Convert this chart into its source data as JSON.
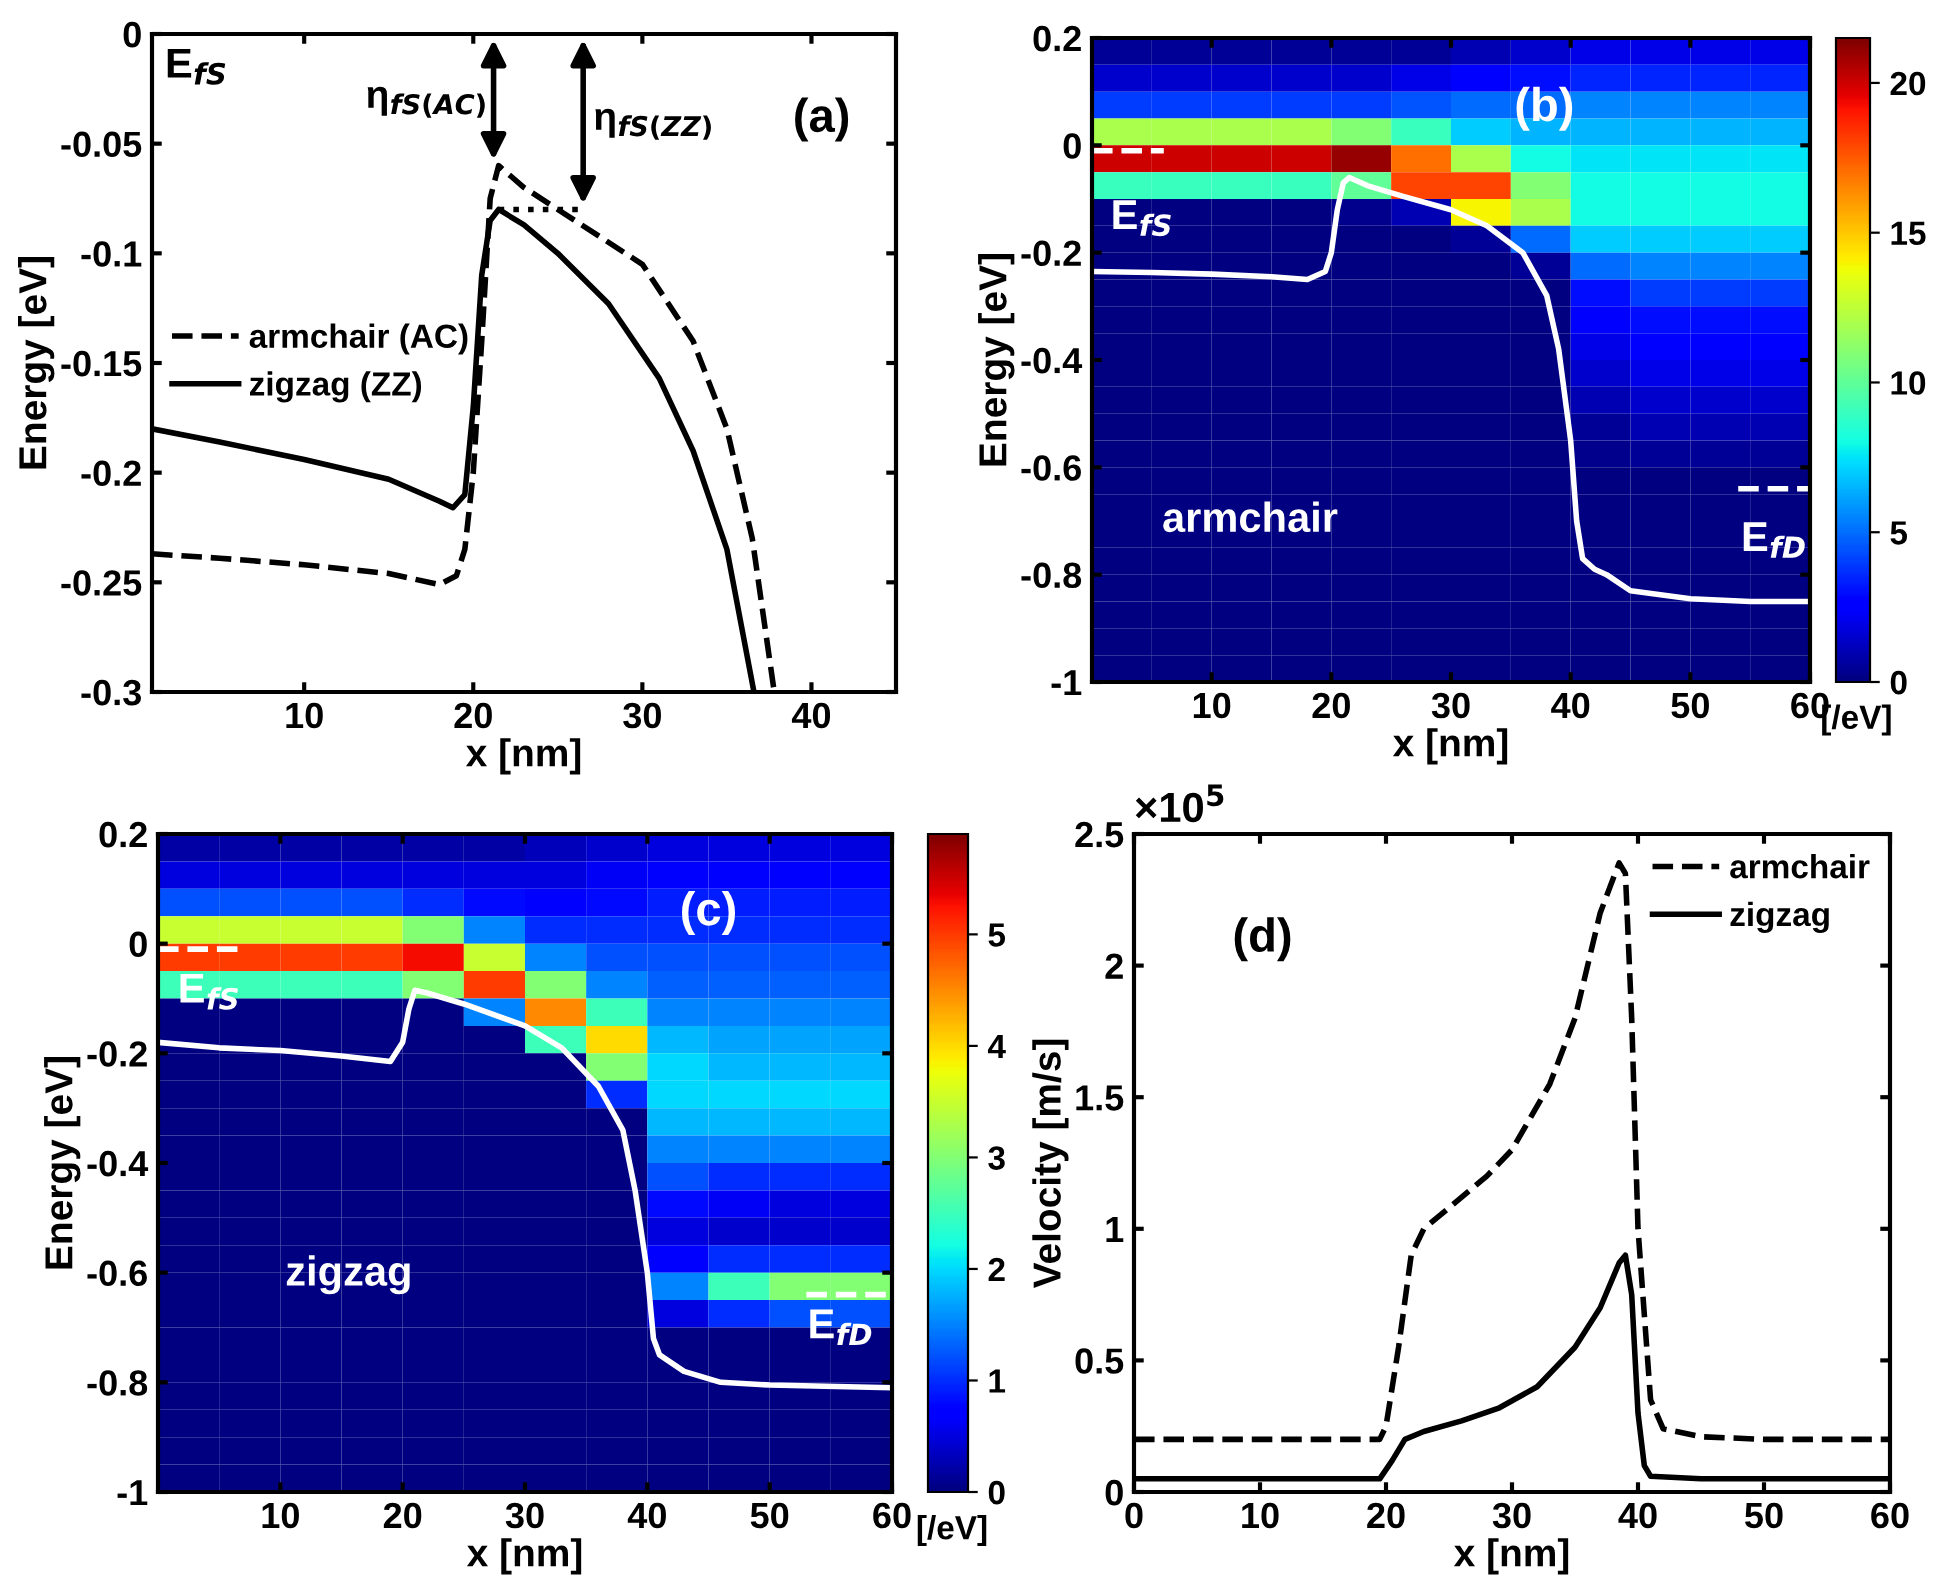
{
  "chart_data": [
    {
      "type": "line",
      "xlabel": "x [nm]",
      "ylabel": "Energy [eV]",
      "xlim": [
        1,
        45
      ],
      "xticks": [
        10,
        20,
        30,
        40
      ],
      "ylim": [
        -0.3,
        0
      ],
      "yticks": [
        -0.3,
        -0.25,
        -0.2,
        -0.15,
        -0.1,
        -0.05,
        0
      ],
      "legend": "center left",
      "series": [
        {
          "name": "armchair (AC)",
          "color": "#000000",
          "line_style": "dashed",
          "x": [
            1,
            5,
            10,
            15,
            18,
            19,
            19.5,
            20,
            20.5,
            21,
            21.5,
            23,
            26,
            30,
            33,
            35,
            36.5,
            37.8
          ],
          "values": [
            -0.237,
            -0.239,
            -0.242,
            -0.246,
            -0.251,
            -0.247,
            -0.235,
            -0.2,
            -0.14,
            -0.075,
            -0.06,
            -0.07,
            -0.085,
            -0.105,
            -0.14,
            -0.18,
            -0.23,
            -0.3
          ]
        },
        {
          "name": "zigzag (ZZ)",
          "color": "#000000",
          "line_style": "solid",
          "x": [
            1,
            5,
            10,
            15,
            18,
            18.8,
            19.5,
            20,
            20.5,
            21,
            21.5,
            23,
            25,
            28,
            31,
            33,
            35,
            36.6
          ],
          "values": [
            -0.18,
            -0.186,
            -0.194,
            -0.203,
            -0.213,
            -0.216,
            -0.21,
            -0.17,
            -0.11,
            -0.085,
            -0.08,
            -0.087,
            -0.1,
            -0.123,
            -0.157,
            -0.19,
            -0.235,
            -0.3
          ]
        },
        {
          "color": "#000000",
          "line_style": "dotted",
          "x": [
            21.5,
            26.5
          ],
          "values": [
            -0.08,
            -0.08
          ]
        }
      ],
      "annotations": [
        "E$_{fS}$",
        "(a)",
        {
          "text": "η$_{fS(AC)}$",
          "x": 21.2,
          "y": -0.06
        },
        {
          "text": "η$_{fS(ZZ)}$",
          "x": 26.5,
          "y": -0.08
        }
      ]
    },
    {
      "type": "heatmap",
      "xlabel": "x [nm]",
      "ylabel": "Energy [eV]",
      "clabel": "[/eV]",
      "xlim": [
        0,
        60
      ],
      "xticks": [
        10,
        20,
        30,
        40,
        50,
        60
      ],
      "ylim": [
        -1,
        0.2
      ],
      "yticks": [
        -1,
        -0.8,
        -0.6,
        -0.4,
        -0.2,
        0,
        0.2
      ],
      "clim": [
        0,
        21.5
      ],
      "cticks": [
        0,
        5,
        10,
        15,
        20
      ],
      "x": [
        2.5,
        7.5,
        12.5,
        17.5,
        22.5,
        27.5,
        32.5,
        37.5,
        42.5,
        47.5,
        52.5,
        57.5
      ],
      "y": [
        0.175,
        0.125,
        0.075,
        0.025,
        -0.025,
        -0.075,
        -0.125,
        -0.175,
        -0.225,
        -0.275,
        -0.325,
        -0.375,
        -0.425,
        -0.475,
        -0.525,
        -0.575,
        -0.625,
        -0.675,
        -0.725,
        -0.775,
        -0.825,
        -0.875,
        -0.925,
        -0.975
      ],
      "cells": [
        [
          0.5,
          0.5,
          0.5,
          0.5,
          0.5,
          0.5,
          1,
          1.5,
          2,
          2,
          2,
          2
        ],
        [
          1.5,
          1.5,
          1.5,
          1.5,
          1.5,
          2,
          2.5,
          3,
          3.5,
          3.5,
          3.5,
          3.5
        ],
        [
          4,
          4,
          4,
          4,
          4,
          4.5,
          5,
          5,
          5.5,
          5.5,
          5.5,
          5.5
        ],
        [
          12,
          12,
          12,
          12,
          11,
          9,
          7,
          6.5,
          6.5,
          6.5,
          6.5,
          6.5
        ],
        [
          20,
          20,
          20,
          20,
          21,
          17,
          12,
          8,
          7.5,
          7.5,
          7.5,
          7.5
        ],
        [
          9,
          9,
          9,
          9,
          10,
          18,
          18,
          11,
          8,
          8,
          8,
          8
        ],
        [
          0,
          0,
          0,
          0,
          0.3,
          1,
          14,
          12,
          8,
          8,
          8,
          8
        ],
        [
          0,
          0,
          0,
          0,
          0,
          0,
          0.5,
          5,
          7,
          7,
          7,
          7
        ],
        [
          0,
          0,
          0,
          0,
          0,
          0,
          0,
          0.5,
          5,
          5.5,
          5.5,
          5.5
        ],
        [
          0,
          0,
          0,
          0,
          0,
          0,
          0,
          0,
          3,
          4,
          4,
          4
        ],
        [
          0,
          0,
          0,
          0,
          0,
          0,
          0,
          0,
          2.5,
          3,
          3,
          3
        ],
        [
          0,
          0,
          0,
          0,
          0,
          0,
          0,
          0,
          2,
          2.5,
          2.5,
          2.5
        ],
        [
          0,
          0,
          0,
          0,
          0,
          0,
          0,
          0,
          1.5,
          2,
          2,
          2
        ],
        [
          0,
          0,
          0,
          0,
          0,
          0,
          0,
          0,
          1,
          1.5,
          1.5,
          1.5
        ],
        [
          0,
          0,
          0,
          0,
          0,
          0,
          0,
          0,
          0.5,
          1,
          1,
          1
        ],
        [
          0,
          0,
          0,
          0,
          0,
          0,
          0,
          0,
          0.3,
          0.5,
          0.5,
          0.5
        ],
        [
          0,
          0,
          0,
          0,
          0,
          0,
          0,
          0,
          0,
          0,
          0,
          0
        ],
        [
          0,
          0,
          0,
          0,
          0,
          0,
          0,
          0,
          0,
          0,
          0,
          0
        ],
        [
          0,
          0,
          0,
          0,
          0,
          0,
          0,
          0,
          0,
          0,
          0,
          0
        ],
        [
          0,
          0,
          0,
          0,
          0,
          0,
          0,
          0,
          0,
          0,
          0,
          0
        ],
        [
          0,
          0,
          0,
          0,
          0,
          0,
          0,
          0,
          0,
          0,
          0,
          0
        ],
        [
          0,
          0,
          0,
          0,
          0,
          0,
          0,
          0,
          0,
          0,
          0,
          0
        ],
        [
          0,
          0,
          0,
          0,
          0,
          0,
          0,
          0,
          0,
          0,
          0,
          0
        ],
        [
          0,
          0,
          0,
          0,
          0,
          0,
          0,
          0,
          0,
          0,
          0,
          0
        ]
      ],
      "series": [
        {
          "type": "line",
          "color": "#ffffff",
          "line_style": "solid",
          "x": [
            0,
            5,
            10,
            15,
            18,
            19.5,
            20,
            20.5,
            21,
            21.5,
            23,
            26,
            30,
            33,
            36,
            38,
            39,
            40,
            40.5,
            41,
            42,
            43,
            45,
            50,
            55,
            60
          ],
          "values": [
            -0.235,
            -0.237,
            -0.24,
            -0.245,
            -0.25,
            -0.235,
            -0.2,
            -0.12,
            -0.07,
            -0.06,
            -0.075,
            -0.095,
            -0.12,
            -0.15,
            -0.2,
            -0.28,
            -0.38,
            -0.55,
            -0.7,
            -0.77,
            -0.79,
            -0.8,
            -0.83,
            -0.845,
            -0.85,
            -0.85
          ]
        },
        {
          "type": "line",
          "color": "#ffffff",
          "line_style": "dashed",
          "x": [
            0,
            6
          ],
          "values": [
            -0.01,
            -0.01
          ]
        },
        {
          "type": "line",
          "color": "#ffffff",
          "line_style": "dashed",
          "x": [
            54,
            60
          ],
          "values": [
            -0.64,
            -0.64
          ]
        }
      ],
      "annotations": [
        "(b)",
        "E$_{fS}$",
        "armchair",
        "E$_{fD}$"
      ]
    },
    {
      "type": "heatmap",
      "xlabel": "x [nm]",
      "ylabel": "Energy [eV]",
      "clabel": "[/eV]",
      "xlim": [
        0,
        60
      ],
      "xticks": [
        10,
        20,
        30,
        40,
        50,
        60
      ],
      "ylim": [
        -1,
        0.2
      ],
      "yticks": [
        -1,
        -0.8,
        -0.6,
        -0.4,
        -0.2,
        0,
        0.2
      ],
      "clim": [
        0,
        5.9
      ],
      "cticks": [
        0,
        1,
        2,
        3,
        4,
        5
      ],
      "x": [
        2.5,
        7.5,
        12.5,
        17.5,
        22.5,
        27.5,
        32.5,
        37.5,
        42.5,
        47.5,
        52.5,
        57.5
      ],
      "y": [
        0.175,
        0.125,
        0.075,
        0.025,
        -0.025,
        -0.075,
        -0.125,
        -0.175,
        -0.225,
        -0.275,
        -0.325,
        -0.375,
        -0.425,
        -0.475,
        -0.525,
        -0.575,
        -0.625,
        -0.675,
        -0.725,
        -0.775,
        -0.825,
        -0.875,
        -0.925,
        -0.975
      ],
      "cells": [
        [
          0.2,
          0.2,
          0.2,
          0.2,
          0.2,
          0.2,
          0.3,
          0.4,
          0.5,
          0.5,
          0.5,
          0.5
        ],
        [
          0.5,
          0.5,
          0.5,
          0.5,
          0.5,
          0.5,
          0.5,
          0.6,
          0.7,
          0.7,
          0.7,
          0.7
        ],
        [
          1.2,
          1.2,
          1.2,
          1.2,
          1,
          0.8,
          0.7,
          0.8,
          0.9,
          0.9,
          0.9,
          0.9
        ],
        [
          3.5,
          3.5,
          3.5,
          3.5,
          3,
          1.5,
          1,
          1,
          1,
          1,
          1,
          1
        ],
        [
          5,
          5,
          5,
          5,
          5.3,
          3.5,
          1.5,
          1.2,
          1.2,
          1.2,
          1.2,
          1.2
        ],
        [
          2.5,
          2.5,
          2.5,
          2.5,
          3,
          5,
          3,
          1.5,
          1.3,
          1.3,
          1.3,
          1.3
        ],
        [
          0,
          0,
          0,
          0,
          0,
          1.5,
          4.5,
          2.5,
          1.5,
          1.5,
          1.5,
          1.5
        ],
        [
          0,
          0,
          0,
          0,
          0,
          0,
          2.5,
          4,
          1.8,
          1.7,
          1.7,
          1.7
        ],
        [
          0,
          0,
          0,
          0,
          0,
          0,
          0,
          3,
          2,
          1.8,
          1.8,
          1.8
        ],
        [
          0,
          0,
          0,
          0,
          0,
          0,
          0,
          1,
          2,
          2,
          2,
          2
        ],
        [
          0,
          0,
          0,
          0,
          0,
          0,
          0,
          0,
          1.8,
          1.8,
          1.8,
          1.8
        ],
        [
          0,
          0,
          0,
          0,
          0,
          0,
          0,
          0,
          1.5,
          1.5,
          1.5,
          1.5
        ],
        [
          0,
          0,
          0,
          0,
          0,
          0,
          0,
          0,
          1.2,
          1,
          1,
          1
        ],
        [
          0,
          0,
          0,
          0,
          0,
          0,
          0,
          0,
          0.8,
          0.6,
          0.5,
          0.5
        ],
        [
          0,
          0,
          0,
          0,
          0,
          0,
          0,
          0,
          0.5,
          0.4,
          0.4,
          0.4
        ],
        [
          0,
          0,
          0,
          0,
          0,
          0,
          0,
          0,
          0.7,
          1,
          1,
          1
        ],
        [
          0,
          0,
          0,
          0,
          0,
          0,
          0,
          0,
          1.5,
          2.5,
          3,
          3
        ],
        [
          0,
          0,
          0,
          0,
          0,
          0,
          0,
          0,
          0.5,
          1,
          1.2,
          1.2
        ],
        [
          0,
          0,
          0,
          0,
          0,
          0,
          0,
          0,
          0,
          0,
          0,
          0
        ],
        [
          0,
          0,
          0,
          0,
          0,
          0,
          0,
          0,
          0,
          0,
          0,
          0
        ],
        [
          0,
          0,
          0,
          0,
          0,
          0,
          0,
          0,
          0,
          0,
          0,
          0
        ],
        [
          0,
          0,
          0,
          0,
          0,
          0,
          0,
          0,
          0,
          0,
          0,
          0
        ],
        [
          0,
          0,
          0,
          0,
          0,
          0,
          0,
          0,
          0,
          0,
          0,
          0
        ],
        [
          0,
          0,
          0,
          0,
          0,
          0,
          0,
          0,
          0,
          0,
          0,
          0
        ]
      ],
      "series": [
        {
          "type": "line",
          "color": "#ffffff",
          "line_style": "solid",
          "x": [
            0,
            5,
            10,
            15,
            19,
            20,
            20.5,
            21,
            22,
            25,
            30,
            33,
            36,
            38,
            39,
            40,
            40.5,
            41,
            43,
            46,
            50,
            60
          ],
          "values": [
            -0.18,
            -0.19,
            -0.195,
            -0.205,
            -0.215,
            -0.18,
            -0.12,
            -0.085,
            -0.09,
            -0.11,
            -0.15,
            -0.19,
            -0.26,
            -0.34,
            -0.45,
            -0.6,
            -0.72,
            -0.75,
            -0.78,
            -0.8,
            -0.805,
            -0.81
          ]
        },
        {
          "type": "line",
          "color": "#ffffff",
          "line_style": "dashed",
          "x": [
            0,
            6.5
          ],
          "values": [
            -0.01,
            -0.01
          ]
        },
        {
          "type": "line",
          "color": "#ffffff",
          "line_style": "dashed",
          "x": [
            53,
            60
          ],
          "values": [
            -0.64,
            -0.64
          ]
        }
      ],
      "annotations": [
        "(c)",
        "E$_{fS}$",
        "zigzag",
        "E$_{fD}$"
      ]
    },
    {
      "type": "line",
      "xlabel": "x [nm]",
      "ylabel": "Velocity [m/s]",
      "xlim": [
        0,
        60
      ],
      "xticks": [
        0,
        10,
        20,
        30,
        40,
        50,
        60
      ],
      "ylim": [
        0,
        2.5
      ],
      "yticks": [
        0,
        0.5,
        1,
        1.5,
        2,
        2.5
      ],
      "legend": "top right",
      "series": [
        {
          "name": "armchair",
          "color": "#000000",
          "line_style": "dashed",
          "x": [
            0,
            19.5,
            20,
            21,
            22,
            23,
            25,
            28,
            30,
            33,
            35,
            37,
            38.5,
            39,
            39.5,
            40,
            41,
            42,
            45,
            50,
            60
          ],
          "values": [
            0.2,
            0.2,
            0.25,
            0.55,
            0.9,
            1.0,
            1.08,
            1.2,
            1.3,
            1.55,
            1.8,
            2.2,
            2.39,
            2.35,
            1.8,
            1.0,
            0.35,
            0.24,
            0.21,
            0.2,
            0.2
          ]
        },
        {
          "name": "zigzag",
          "color": "#000000",
          "line_style": "solid",
          "x": [
            0,
            19.5,
            20.5,
            21.5,
            23,
            26,
            29,
            32,
            35,
            37,
            38.5,
            39,
            39.5,
            40,
            40.5,
            41,
            45,
            60
          ],
          "values": [
            0.05,
            0.05,
            0.12,
            0.2,
            0.23,
            0.27,
            0.32,
            0.4,
            0.55,
            0.7,
            0.87,
            0.9,
            0.75,
            0.3,
            0.1,
            0.06,
            0.05,
            0.05
          ]
        }
      ],
      "annotations": [
        "(d)",
        "×10$^{5}$"
      ]
    }
  ]
}
